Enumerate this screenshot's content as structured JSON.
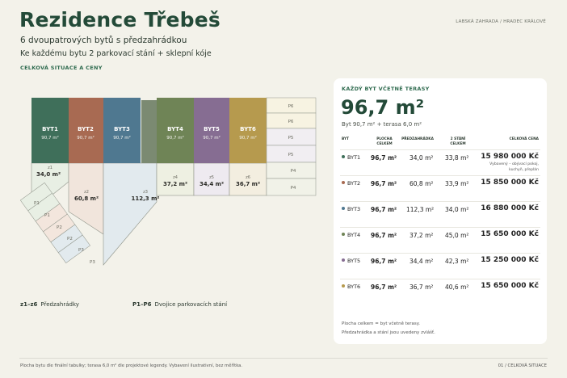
{
  "header": {
    "title": "Rezidence Třebeš",
    "subtitle": "6 dvoupatrových bytů s předzahrádkou",
    "subline": "Ke každému bytu 2 parkovací stání + sklepní kóje",
    "section_label": "CELKOVÁ SITUACE A CENY",
    "location": "LABSKÁ ZAHRADA / HRADEC KRÁLOVÉ"
  },
  "plan": {
    "houses": [
      {
        "label": "BYT1",
        "area": "90,7 m²",
        "color": "#3f6f5a"
      },
      {
        "label": "BYT2",
        "area": "90,7 m²",
        "color": "#a86a52"
      },
      {
        "label": "BYT3",
        "area": "90,7 m²",
        "color": "#4f7890"
      },
      {
        "label": "BYT4",
        "area": "90,7 m²",
        "color": "#6f8456"
      },
      {
        "label": "BYT5",
        "area": "90,7 m²",
        "color": "#866d92"
      },
      {
        "label": "BYT6",
        "area": "90,7 m²",
        "color": "#b69a4e"
      }
    ],
    "gardens": [
      {
        "label": "z1",
        "area": "34,0 m²"
      },
      {
        "label": "z2",
        "area": "60,8 m²"
      },
      {
        "label": "z3",
        "area": "112,3 m²"
      },
      {
        "label": "z4",
        "area": "37,2 m²"
      },
      {
        "label": "z5",
        "area": "34,4 m²"
      },
      {
        "label": "z6",
        "area": "36,7 m²"
      }
    ],
    "parking_right": [
      "P6",
      "P6",
      "P5",
      "P5",
      "P4",
      "P4"
    ],
    "parking_left": [
      "P1",
      "P1",
      "P2",
      "P2",
      "P3",
      "P3"
    ]
  },
  "legend": {
    "gardens_key": "z1–z6",
    "gardens_text": "Předzahrádky",
    "parking_key": "P1–P6",
    "parking_text": "Dvojice parkovacích stání"
  },
  "card": {
    "heading": "KAŽDÝ BYT VČETNĚ TERASY",
    "area": "96,7 m²",
    "note": "Byt 90,7 m² + terasa 6,0 m²",
    "columns": {
      "byt": "BYT",
      "plocha": "PLOCHA\nCELKEM",
      "predzahradka": "PŘEDZAHRÁDKA",
      "stani": "2 STÁNÍ\nCELKEM",
      "cena": "CELKOVÁ CENA"
    },
    "rows": [
      {
        "byt": "BYT1",
        "plocha": "96,7 m²",
        "predzahradka": "34,0 m²",
        "stani": "33,8 m²",
        "cena": "15 980 000 Kč",
        "color": "#3f6f5a",
        "extra": "Vybavený – obývací pokoj,\nkuchyň, přeplán"
      },
      {
        "byt": "BYT2",
        "plocha": "96,7 m²",
        "predzahradka": "60,8 m²",
        "stani": "33,9 m²",
        "cena": "15 850 000 Kč",
        "color": "#a86a52"
      },
      {
        "byt": "BYT3",
        "plocha": "96,7 m²",
        "predzahradka": "112,3 m²",
        "stani": "34,0 m²",
        "cena": "16 880 000 Kč",
        "color": "#4f7890"
      },
      {
        "byt": "BYT4",
        "plocha": "96,7 m²",
        "predzahradka": "37,2 m²",
        "stani": "45,0 m²",
        "cena": "15 650 000 Kč",
        "color": "#6f8456"
      },
      {
        "byt": "BYT5",
        "plocha": "96,7 m²",
        "predzahradka": "34,4 m²",
        "stani": "42,3 m²",
        "cena": "15 250 000 Kč",
        "color": "#866d92"
      },
      {
        "byt": "BYT6",
        "plocha": "96,7 m²",
        "predzahradka": "36,7 m²",
        "stani": "40,6 m²",
        "cena": "15 650 000 Kč",
        "color": "#b69a4e"
      }
    ],
    "foot1": "Plocha celkem = byt včetně terasy.",
    "foot2": "Předzahrádka a stání jsou uvedeny zvlášť."
  },
  "footer": {
    "left": "Plocha bytu dle finální tabulky; terasa 6,0 m² dle projektové legendy. Vybavení ilustrativní, bez měřítka.",
    "right": "01 / CELKOVÁ SITUACE"
  }
}
